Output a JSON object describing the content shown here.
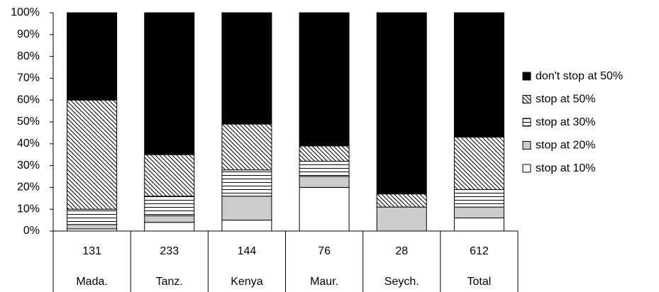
{
  "chart_data": {
    "type": "stacked_bar_100",
    "categories": [
      "Mada.",
      "Tanz.",
      "Kenya",
      "Maur.",
      "Seych.",
      "Total"
    ],
    "sample_sizes": [
      131,
      233,
      144,
      76,
      28,
      612
    ],
    "series": [
      {
        "name": "stop at 10%",
        "color": "#ffffff",
        "pattern": "solid",
        "values": [
          1,
          4,
          5,
          20,
          0,
          6
        ]
      },
      {
        "name": "stop at 20%",
        "color": "#cccccc",
        "pattern": "solid",
        "values": [
          2,
          3,
          11,
          5,
          11,
          5
        ]
      },
      {
        "name": "stop at 30%",
        "color": "#ffffff",
        "pattern": "hlines",
        "values": [
          7,
          9,
          12,
          7,
          0,
          8
        ]
      },
      {
        "name": "stop at 50%",
        "color": "#ffffff",
        "pattern": "hatch",
        "values": [
          50,
          19,
          21,
          7,
          6,
          24
        ]
      },
      {
        "name": "don't stop at 50%",
        "color": "#000000",
        "pattern": "solid",
        "values": [
          40,
          65,
          51,
          61,
          83,
          57
        ]
      }
    ],
    "ylim": [
      0,
      100
    ],
    "yticks": [
      {
        "value": 0,
        "label": "0%"
      },
      {
        "value": 10,
        "label": "10%"
      },
      {
        "value": 20,
        "label": "20%"
      },
      {
        "value": 30,
        "label": "30%"
      },
      {
        "value": 40,
        "label": "40%"
      },
      {
        "value": 50,
        "label": "50%"
      },
      {
        "value": 60,
        "label": "60%"
      },
      {
        "value": 70,
        "label": "70%"
      },
      {
        "value": 80,
        "label": "80%"
      },
      {
        "value": 90,
        "label": "90%"
      },
      {
        "value": 100,
        "label": "100%"
      }
    ],
    "legend": "right"
  }
}
